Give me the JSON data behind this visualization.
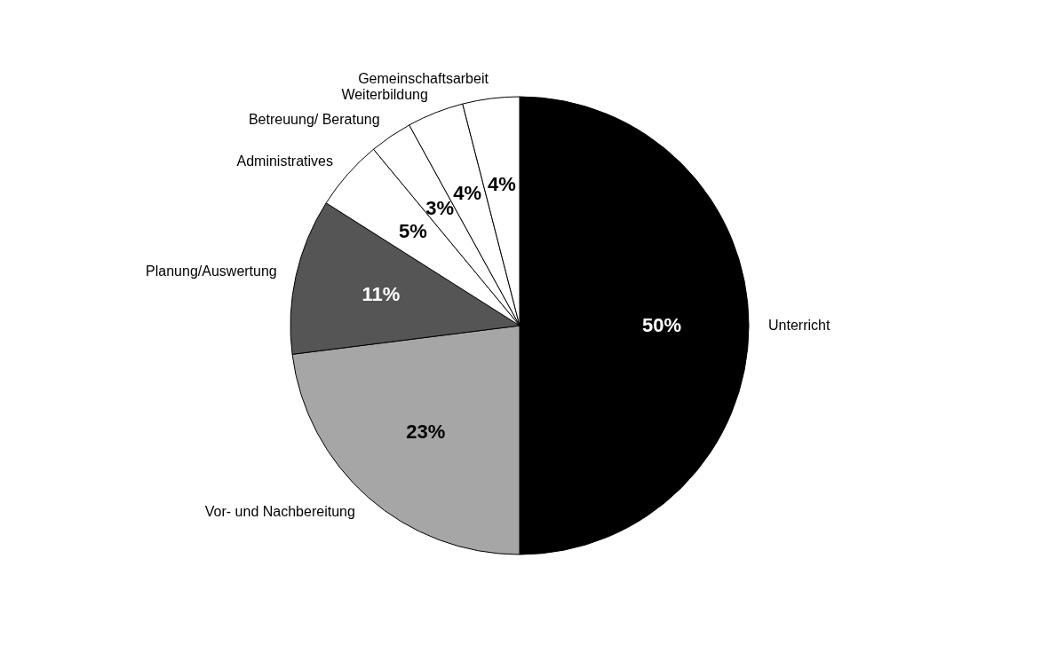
{
  "chart_data": {
    "type": "pie",
    "categories": [
      "Unterricht",
      "Vor- und Nachbereitung",
      "Planung/Auswertung",
      "Administratives",
      "Betreuung/ Beratung",
      "Weiterbildung",
      "Gemeinschaftsarbeit"
    ],
    "values": [
      50,
      23,
      11,
      5,
      3,
      4,
      4
    ],
    "value_labels": [
      "50%",
      "23%",
      "11%",
      "5%",
      "3%",
      "4%",
      "4%"
    ],
    "colors": [
      "#000000",
      "#a6a6a6",
      "#555555",
      "#ffffff",
      "#ffffff",
      "#ffffff",
      "#ffffff"
    ]
  }
}
